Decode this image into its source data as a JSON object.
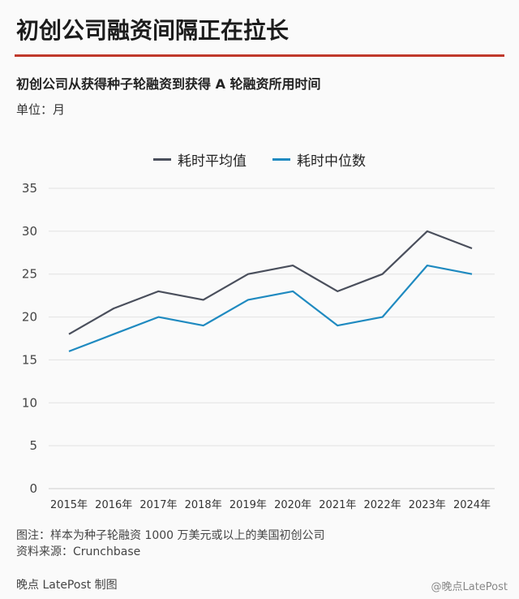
{
  "page_title": "初创公司融资间隔正在拉长",
  "subtitle": "初创公司从获得种子轮融资到获得 A 轮融资所用时间",
  "unit_label": "单位：月",
  "note": "图注：样本为种子轮融资 1000 万美元或以上的美国初创公司",
  "source": "资料来源：Crunchbase",
  "brand": "晚点 LatePost 制图",
  "weibo_watermark": "@晚点LatePost",
  "colors": {
    "accent_rule": "#c0392b",
    "mean_line": "#4a4f5c",
    "median_line": "#1f8ac0"
  },
  "chart_data": {
    "type": "line",
    "title": "初创公司从获得种子轮融资到获得 A 轮融资所用时间",
    "ylabel": "单位：月",
    "categories": [
      "2015年",
      "2016年",
      "2017年",
      "2018年",
      "2019年",
      "2020年",
      "2021年",
      "2022年",
      "2023年",
      "2024年"
    ],
    "ylim": [
      0,
      35
    ],
    "yticks": [
      0,
      5,
      10,
      15,
      20,
      25,
      30,
      35
    ],
    "grid": true,
    "legend_position": "top-center",
    "series": [
      {
        "name": "耗时平均值",
        "color": "#4a4f5c",
        "values": [
          18,
          21,
          23,
          22,
          25,
          26,
          23,
          25,
          30,
          28
        ]
      },
      {
        "name": "耗时中位数",
        "color": "#1f8ac0",
        "values": [
          16,
          18,
          20,
          19,
          22,
          23,
          19,
          20,
          26,
          25
        ]
      }
    ]
  }
}
